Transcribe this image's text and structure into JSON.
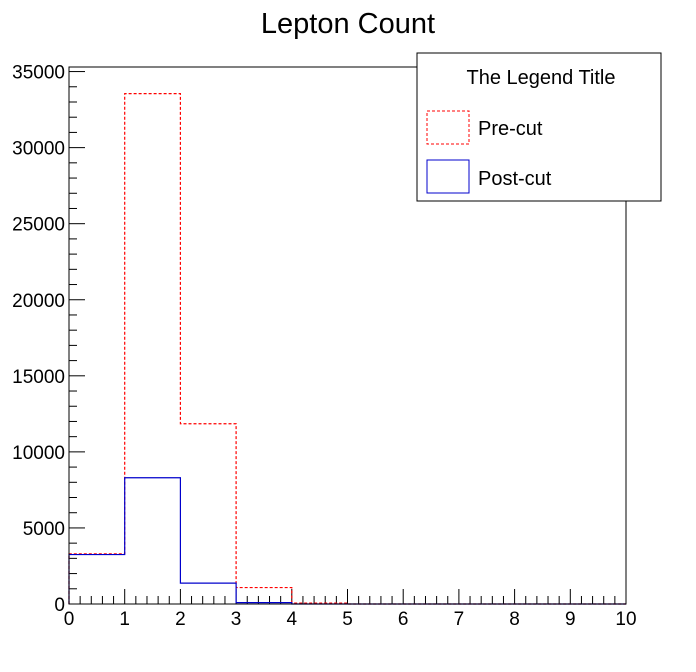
{
  "chart_data": {
    "type": "histogram",
    "title": "Lepton Count",
    "xlabel": "",
    "ylabel": "",
    "xlim": [
      0,
      10
    ],
    "ylim": [
      0,
      35300
    ],
    "bin_edges": [
      0,
      1,
      2,
      3,
      4,
      5,
      6,
      7,
      8,
      9,
      10
    ],
    "x_ticks": [
      "0",
      "1",
      "2",
      "3",
      "4",
      "5",
      "6",
      "7",
      "8",
      "9",
      "10"
    ],
    "y_ticks": [
      {
        "value": 0,
        "label": "0"
      },
      {
        "value": 5000,
        "label": "5000"
      },
      {
        "value": 10000,
        "label": "10000"
      },
      {
        "value": 15000,
        "label": "15000"
      },
      {
        "value": 20000,
        "label": "20000"
      },
      {
        "value": 25000,
        "label": "25000"
      },
      {
        "value": 30000,
        "label": "30000"
      },
      {
        "value": 35000,
        "label": "35000"
      }
    ],
    "grid": false,
    "series": [
      {
        "name": "Pre-cut",
        "color": "#ff0000",
        "line_style": "dashed",
        "values": [
          3300,
          33550,
          11850,
          1080,
          60,
          0,
          0,
          0,
          0,
          0
        ]
      },
      {
        "name": "Post-cut",
        "color": "#0000cc",
        "line_style": "solid",
        "values": [
          3250,
          8300,
          1370,
          90,
          0,
          0,
          0,
          0,
          0,
          0
        ]
      }
    ],
    "legend": {
      "title": "The Legend Title",
      "position": "top-right"
    }
  }
}
